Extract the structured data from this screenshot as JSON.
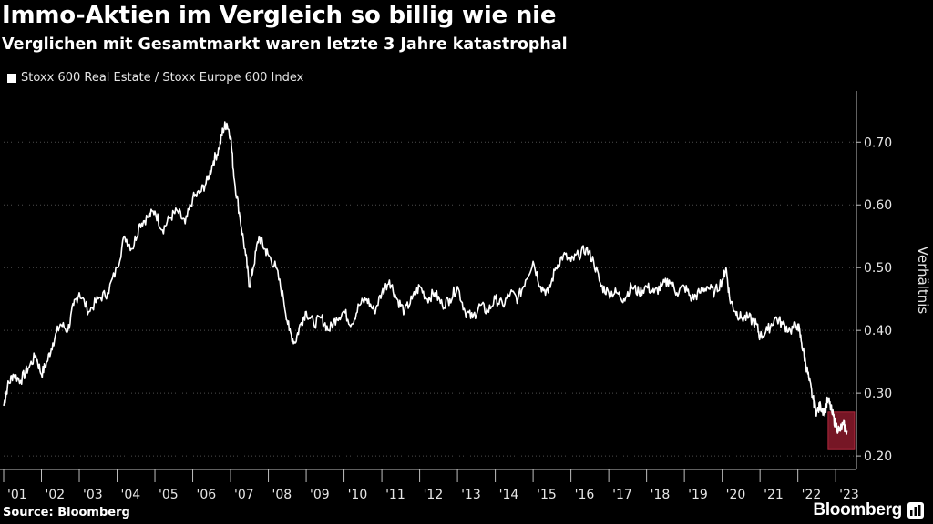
{
  "header": {
    "title": "Immo-Aktien im Vergleich so billig wie nie",
    "subtitle": "Verglichen mit Gesamtmarkt waren letzte 3 Jahre katastrophal"
  },
  "footer": {
    "source": "Source: Bloomberg",
    "logo_text": "Bloomberg"
  },
  "colors": {
    "background": "#000000",
    "line": "#ffffff",
    "grid": "#4d4d4d",
    "highlight": "#8b1a2b"
  },
  "chart_data": {
    "type": "line",
    "title": "Immo-Aktien im Vergleich so billig wie nie",
    "subtitle": "Verglichen mit Gesamtmarkt waren letzte 3 Jahre katastrophal",
    "ylabel": "Verhältnis",
    "xlabel": "",
    "legend": [
      "Stoxx 600 Real Estate / Stoxx Europe 600 Index"
    ],
    "legend_position": "top-left",
    "grid": "horizontal dotted",
    "y_axis_side": "right",
    "xlim": [
      2001.0,
      2023.55
    ],
    "ylim": [
      0.19,
      0.77
    ],
    "y_ticks": [
      0.2,
      0.3,
      0.4,
      0.5,
      0.6,
      0.7
    ],
    "y_tick_labels": [
      "0.20",
      "0.30",
      "0.40",
      "0.50",
      "0.60",
      "0.70"
    ],
    "x_ticks": [
      2001,
      2002,
      2003,
      2004,
      2005,
      2006,
      2007,
      2008,
      2009,
      2010,
      2011,
      2012,
      2013,
      2014,
      2015,
      2016,
      2017,
      2018,
      2019,
      2020,
      2021,
      2022,
      2023
    ],
    "x_tick_labels": [
      "'01",
      "'02",
      "'03",
      "'04",
      "'05",
      "'06",
      "'07",
      "'08",
      "'09",
      "'10",
      "'11",
      "'12",
      "'13",
      "'14",
      "'15",
      "'16",
      "'17",
      "'18",
      "'19",
      "'20",
      "'21",
      "'22",
      "'23"
    ],
    "highlight_region": {
      "x": [
        2022.8,
        2023.5
      ],
      "y": [
        0.21,
        0.27
      ]
    },
    "series": [
      {
        "name": "Stoxx 600 Real Estate / Stoxx Europe 600 Index",
        "x": [
          2001.0,
          2001.1,
          2001.25,
          2001.45,
          2001.65,
          2001.85,
          2002.0,
          2002.15,
          2002.3,
          2002.5,
          2002.7,
          2002.85,
          2003.0,
          2003.25,
          2003.5,
          2003.75,
          2004.0,
          2004.2,
          2004.4,
          2004.6,
          2004.8,
          2005.0,
          2005.2,
          2005.4,
          2005.6,
          2005.8,
          2006.0,
          2006.2,
          2006.4,
          2006.55,
          2006.7,
          2006.8,
          2006.9,
          2007.0,
          2007.1,
          2007.25,
          2007.4,
          2007.5,
          2007.6,
          2007.75,
          2007.9,
          2008.0,
          2008.2,
          2008.4,
          2008.55,
          2008.7,
          2008.85,
          2009.0,
          2009.2,
          2009.4,
          2009.6,
          2009.8,
          2010.0,
          2010.2,
          2010.4,
          2010.6,
          2010.8,
          2011.0,
          2011.2,
          2011.4,
          2011.6,
          2011.8,
          2012.0,
          2012.2,
          2012.4,
          2012.6,
          2012.8,
          2013.0,
          2013.2,
          2013.4,
          2013.6,
          2013.8,
          2014.0,
          2014.2,
          2014.4,
          2014.6,
          2014.8,
          2015.0,
          2015.2,
          2015.4,
          2015.6,
          2015.8,
          2016.0,
          2016.2,
          2016.4,
          2016.6,
          2016.8,
          2017.0,
          2017.2,
          2017.4,
          2017.6,
          2017.8,
          2018.0,
          2018.2,
          2018.4,
          2018.6,
          2018.8,
          2019.0,
          2019.2,
          2019.4,
          2019.6,
          2019.8,
          2020.0,
          2020.1,
          2020.2,
          2020.35,
          2020.5,
          2020.7,
          2020.9,
          2021.0,
          2021.2,
          2021.4,
          2021.6,
          2021.8,
          2022.0,
          2022.1,
          2022.2,
          2022.3,
          2022.4,
          2022.5,
          2022.6,
          2022.7,
          2022.8,
          2022.9,
          2023.0,
          2023.1,
          2023.2,
          2023.3
        ],
        "y": [
          0.28,
          0.31,
          0.33,
          0.32,
          0.34,
          0.36,
          0.33,
          0.35,
          0.38,
          0.41,
          0.4,
          0.44,
          0.46,
          0.43,
          0.45,
          0.46,
          0.5,
          0.55,
          0.53,
          0.57,
          0.58,
          0.59,
          0.56,
          0.58,
          0.59,
          0.57,
          0.61,
          0.62,
          0.64,
          0.67,
          0.69,
          0.72,
          0.73,
          0.71,
          0.64,
          0.58,
          0.52,
          0.47,
          0.5,
          0.55,
          0.53,
          0.52,
          0.5,
          0.45,
          0.4,
          0.38,
          0.41,
          0.43,
          0.41,
          0.42,
          0.4,
          0.42,
          0.43,
          0.41,
          0.44,
          0.45,
          0.43,
          0.46,
          0.48,
          0.45,
          0.43,
          0.45,
          0.47,
          0.45,
          0.46,
          0.44,
          0.45,
          0.47,
          0.43,
          0.42,
          0.44,
          0.43,
          0.45,
          0.44,
          0.46,
          0.45,
          0.48,
          0.51,
          0.47,
          0.46,
          0.5,
          0.52,
          0.51,
          0.52,
          0.53,
          0.51,
          0.47,
          0.46,
          0.46,
          0.45,
          0.47,
          0.46,
          0.47,
          0.46,
          0.47,
          0.48,
          0.46,
          0.47,
          0.45,
          0.46,
          0.47,
          0.46,
          0.48,
          0.5,
          0.45,
          0.43,
          0.42,
          0.42,
          0.41,
          0.39,
          0.4,
          0.42,
          0.41,
          0.4,
          0.41,
          0.38,
          0.35,
          0.32,
          0.29,
          0.27,
          0.28,
          0.27,
          0.29,
          0.27,
          0.25,
          0.24,
          0.25,
          0.24
        ]
      }
    ]
  }
}
